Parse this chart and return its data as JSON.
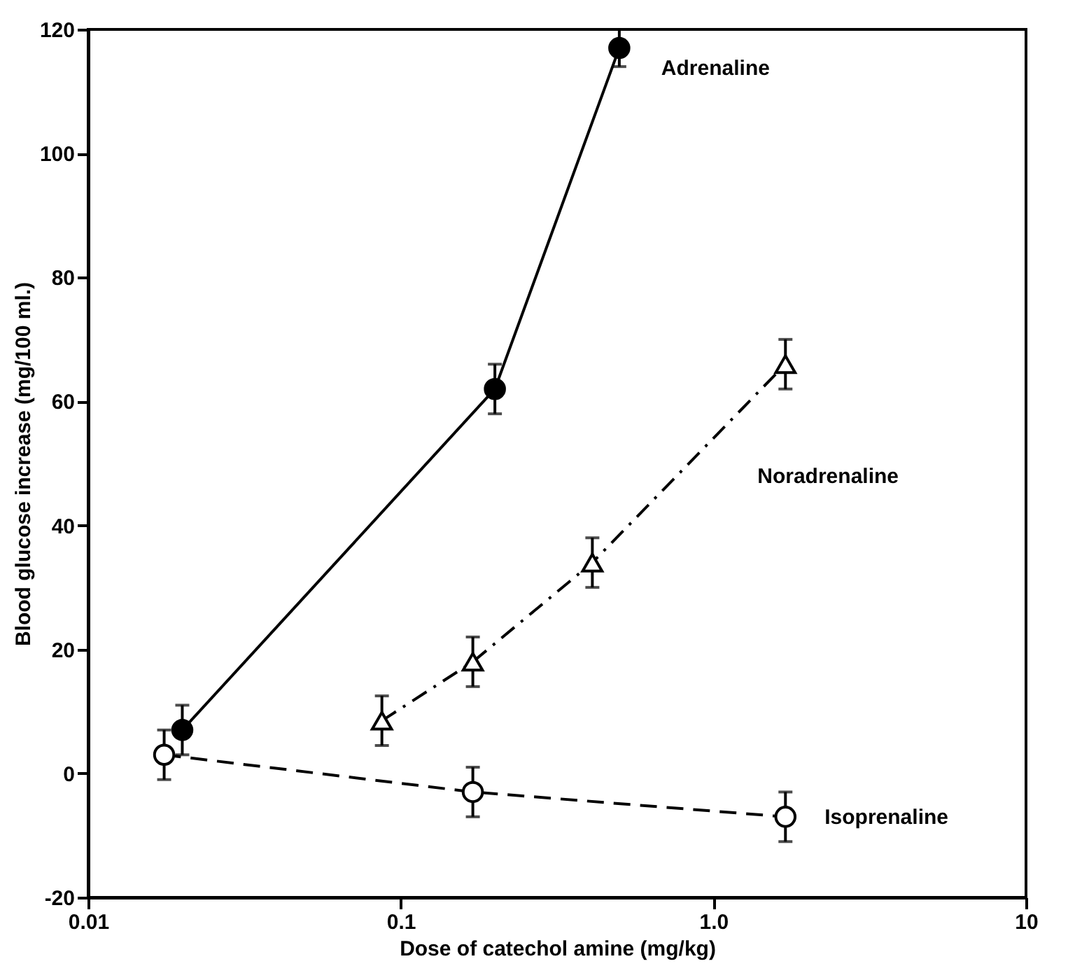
{
  "chart_data": {
    "type": "line",
    "xlabel": "Dose of catechol amine (mg/kg)",
    "ylabel": "Blood glucose increase (mg/100 ml.)",
    "log": "x",
    "grid": false,
    "xlim": [
      0.01,
      10
    ],
    "xticks": [
      0.01,
      0.1,
      {
        "value": 1,
        "label": "1.0"
      },
      10
    ],
    "ylim": [
      -20,
      120
    ],
    "yticks": [
      -20,
      0,
      20,
      40,
      60,
      80,
      100,
      120
    ],
    "series": [
      {
        "name": "Adrenaline",
        "color": "#000000",
        "marker": "circle",
        "line_style": "solid",
        "x": [
          0.02,
          0.2,
          0.5
        ],
        "values": [
          7,
          62,
          117
        ],
        "errors": [
          4,
          4,
          3
        ]
      },
      {
        "name": "Noradrenaline",
        "color": "#000000",
        "marker": "triangle",
        "line_style": "dashdot",
        "x": [
          0.087,
          0.17,
          0.41,
          1.7
        ],
        "values": [
          8.5,
          18,
          34,
          66
        ],
        "errors": [
          4,
          4,
          4,
          4
        ]
      },
      {
        "name": "Isoprenaline",
        "color": "#000000",
        "marker": "circle",
        "line_style": "dashed",
        "x": [
          0.0175,
          0.17,
          1.7
        ],
        "values": [
          3,
          -3,
          -7
        ],
        "errors": [
          4,
          4,
          4
        ]
      }
    ]
  }
}
